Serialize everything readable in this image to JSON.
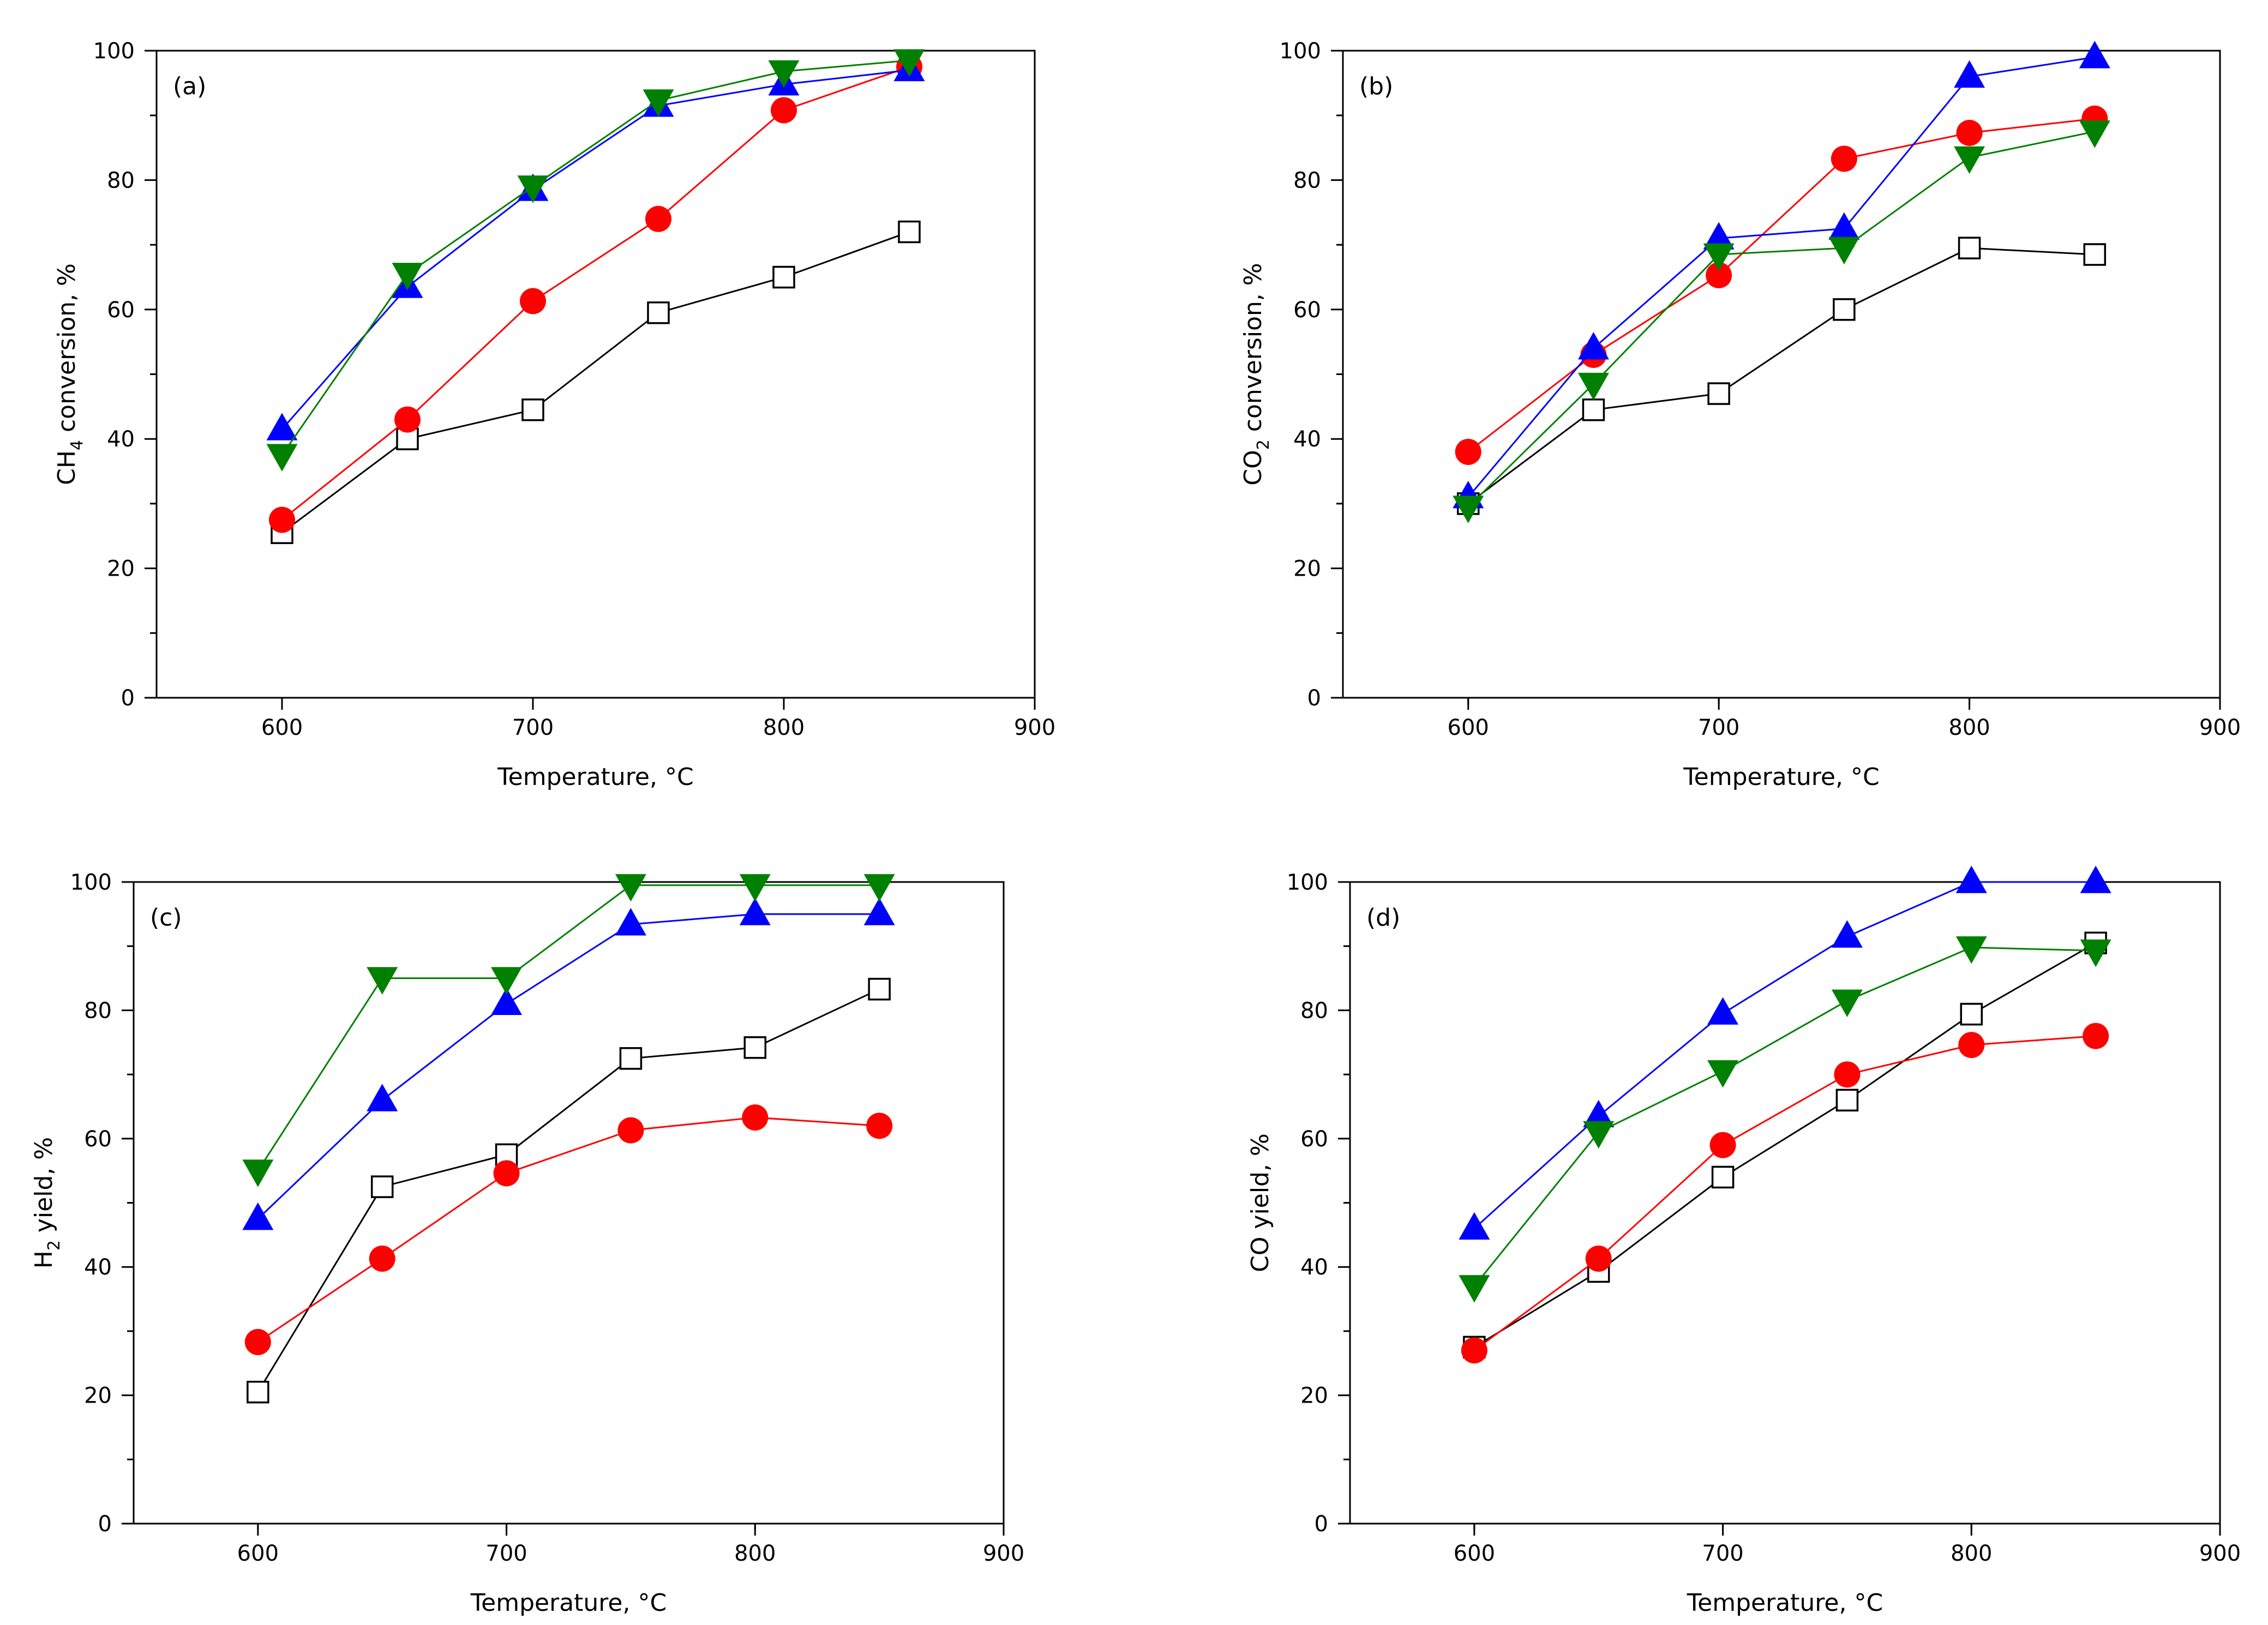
{
  "chart_data": [
    {
      "type": "scatter",
      "panel_label": "(a)",
      "xlabel": "Temperature, °C",
      "ylabel": {
        "pre": "CH",
        "sub": "4",
        "post": " conversion, %"
      },
      "xlim": [
        550,
        900
      ],
      "ylim": [
        0,
        100
      ],
      "xticks": [
        600,
        700,
        800,
        900
      ],
      "yticks": [
        0,
        20,
        40,
        60,
        80,
        100
      ],
      "x": [
        600,
        650,
        700,
        750,
        800,
        850
      ],
      "series": [
        {
          "marker": "square-open",
          "color": "#000000",
          "values": [
            25.5,
            40,
            44.5,
            59.5,
            65,
            72
          ]
        },
        {
          "marker": "circle",
          "color": "#ff0000",
          "values": [
            27.5,
            43,
            61.3,
            74,
            90.8,
            97.5
          ]
        },
        {
          "marker": "triangle-up",
          "color": "#0000ff",
          "values": [
            41.5,
            63.5,
            78.5,
            91.5,
            94.8,
            97
          ]
        },
        {
          "marker": "triangle-down",
          "color": "#008000",
          "values": [
            37.5,
            65.5,
            79,
            92.3,
            96.8,
            98.5
          ]
        }
      ]
    },
    {
      "type": "scatter",
      "panel_label": "(b)",
      "xlabel": "Temperature, °C",
      "ylabel": {
        "pre": "CO",
        "sub": "2",
        "post": " conversion, %"
      },
      "xlim": [
        550,
        900
      ],
      "ylim": [
        0,
        100
      ],
      "xticks": [
        600,
        700,
        800,
        900
      ],
      "yticks": [
        0,
        20,
        40,
        60,
        80,
        100
      ],
      "x": [
        600,
        650,
        700,
        750,
        800,
        850
      ],
      "series": [
        {
          "marker": "square-open",
          "color": "#000000",
          "values": [
            30,
            44.5,
            47,
            60,
            69.5,
            68.5
          ]
        },
        {
          "marker": "circle",
          "color": "#ff0000",
          "values": [
            38,
            53,
            65.3,
            83.3,
            87.3,
            89.5
          ]
        },
        {
          "marker": "triangle-up",
          "color": "#0000ff",
          "values": [
            31,
            54,
            71,
            72.5,
            96,
            99
          ]
        },
        {
          "marker": "triangle-down",
          "color": "#008000",
          "values": [
            29.5,
            48.5,
            68.5,
            69.5,
            83.5,
            87.5
          ]
        }
      ]
    },
    {
      "type": "scatter",
      "panel_label": "(c)",
      "xlabel": "Temperature, °C",
      "ylabel": {
        "pre": "H",
        "sub": "2",
        "post": " yield, %"
      },
      "xlim": [
        550,
        900
      ],
      "ylim": [
        0,
        100
      ],
      "xticks": [
        600,
        700,
        800,
        900
      ],
      "yticks": [
        0,
        20,
        40,
        60,
        80,
        100
      ],
      "x": [
        600,
        650,
        700,
        750,
        800,
        850
      ],
      "series": [
        {
          "marker": "square-open",
          "color": "#000000",
          "values": [
            20.5,
            52.5,
            57.5,
            72.5,
            74.2,
            83.3
          ]
        },
        {
          "marker": "circle",
          "color": "#ff0000",
          "values": [
            28.3,
            41.3,
            54.6,
            61.3,
            63.3,
            62
          ]
        },
        {
          "marker": "triangle-up",
          "color": "#0000ff",
          "values": [
            47.5,
            66,
            81,
            93.4,
            95,
            95
          ]
        },
        {
          "marker": "triangle-down",
          "color": "#008000",
          "values": [
            55,
            85,
            85,
            99.5,
            99.5,
            99.5
          ]
        }
      ]
    },
    {
      "type": "scatter",
      "panel_label": "(d)",
      "xlabel": "Temperature, °C",
      "ylabel": {
        "pre": "CO yield, %",
        "sub": "",
        "post": ""
      },
      "xlim": [
        550,
        900
      ],
      "ylim": [
        0,
        100
      ],
      "xticks": [
        600,
        700,
        800,
        900
      ],
      "yticks": [
        0,
        20,
        40,
        60,
        80,
        100
      ],
      "x": [
        600,
        650,
        700,
        750,
        800,
        850
      ],
      "series": [
        {
          "marker": "square-open",
          "color": "#000000",
          "values": [
            27.5,
            39.3,
            54,
            66,
            79.4,
            90.5
          ]
        },
        {
          "marker": "circle",
          "color": "#ff0000",
          "values": [
            27,
            41.3,
            59,
            70,
            74.6,
            76
          ]
        },
        {
          "marker": "triangle-up",
          "color": "#0000ff",
          "values": [
            46,
            63.5,
            79.5,
            91.5,
            100,
            100
          ]
        },
        {
          "marker": "triangle-down",
          "color": "#008000",
          "values": [
            37,
            61,
            70.5,
            81.5,
            89.8,
            89.3
          ]
        }
      ]
    }
  ]
}
